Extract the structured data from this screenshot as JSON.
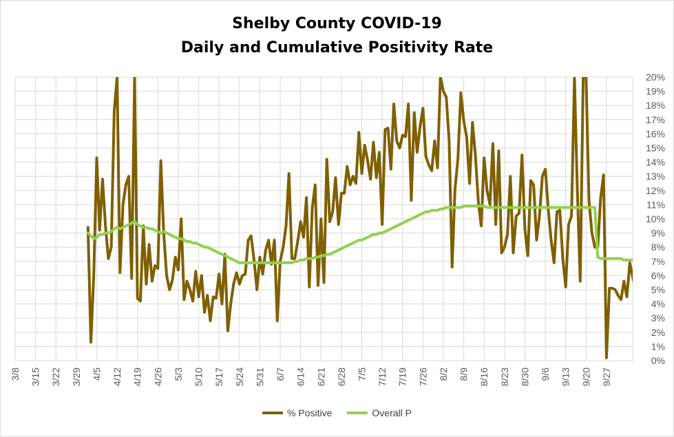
{
  "title_line1": "Shelby County COVID-19",
  "title_line2": "Daily and Cumulative Positivity Rate",
  "colors": {
    "positive": "#7f6000",
    "overall": "#92d050",
    "grid": "#d9d9d9",
    "axis_text": "#595959"
  },
  "chart_data": {
    "type": "line",
    "title": "Shelby County COVID-19 Daily and Cumulative Positivity Rate",
    "x_ticks": [
      "3/8",
      "3/15",
      "3/22",
      "3/29",
      "4/5",
      "4/12",
      "4/19",
      "4/26",
      "5/3",
      "5/10",
      "5/17",
      "5/24",
      "5/31",
      "6/7",
      "6/14",
      "6/21",
      "6/28",
      "7/5",
      "7/12",
      "7/19",
      "7/26",
      "8/2",
      "8/9",
      "8/16",
      "8/23",
      "8/30",
      "9/6",
      "9/13",
      "9/20",
      "9/27"
    ],
    "y_ticks": [
      "0%",
      "1%",
      "2%",
      "3%",
      "4%",
      "5%",
      "6%",
      "7%",
      "8%",
      "9%",
      "10%",
      "11%",
      "12%",
      "13%",
      "14%",
      "15%",
      "16%",
      "17%",
      "18%",
      "19%",
      "20%"
    ],
    "ylim": [
      0,
      20
    ],
    "x_start": "3/8",
    "x_days": 212,
    "series": [
      {
        "name": "% Positive",
        "color": "#7f6000",
        "start": "4/2",
        "values": [
          9.4,
          1.3,
          6.0,
          14.3,
          9.2,
          12.8,
          9.5,
          7.2,
          8.0,
          17.6,
          20.0,
          6.2,
          11.0,
          12.4,
          13.0,
          5.8,
          20.0,
          4.4,
          4.2,
          9.5,
          5.4,
          8.2,
          5.6,
          6.7,
          6.5,
          14.1,
          9.0,
          6.0,
          5.0,
          5.7,
          7.3,
          6.4,
          10.0,
          4.3,
          5.6,
          5.0,
          4.2,
          6.3,
          4.5,
          6.0,
          3.4,
          4.6,
          2.8,
          4.5,
          4.4,
          6.1,
          4.0,
          7.5,
          2.1,
          4.0,
          5.4,
          6.2,
          5.4,
          6.0,
          6.1,
          8.5,
          8.8,
          7.1,
          5.0,
          7.3,
          6.1,
          7.8,
          8.5,
          6.8,
          8.5,
          2.8,
          7.0,
          8.0,
          9.5,
          13.2,
          7.2,
          7.2,
          8.4,
          9.8,
          8.7,
          11.5,
          5.2,
          10.8,
          12.4,
          5.3,
          10.0,
          5.5,
          14.2,
          9.8,
          10.5,
          12.9,
          9.6,
          11.8,
          11.8,
          13.7,
          12.4,
          13.0,
          12.5,
          16.1,
          13.2,
          15.2,
          14.1,
          12.8,
          15.4,
          12.9,
          14.7,
          9.6,
          16.3,
          16.4,
          13.5,
          18.1,
          15.5,
          15.0,
          15.9,
          15.8,
          18.1,
          11.3,
          17.5,
          14.7,
          16.5,
          17.8,
          14.4,
          13.8,
          13.4,
          15.5,
          13.6,
          20.0,
          19.0,
          18.6,
          15.5,
          6.6,
          12.1,
          14.2,
          18.9,
          16.9,
          15.8,
          12.5,
          16.8,
          14.5,
          11.2,
          9.5,
          14.3,
          12.0,
          11.0,
          15.3,
          9.6,
          14.8,
          7.6,
          8.0,
          8.9,
          13.0,
          7.6,
          10.2,
          10.4,
          14.5,
          9.3,
          7.4,
          12.7,
          12.4,
          8.5,
          10.2,
          13.0,
          13.5,
          10.7,
          8.5,
          6.9,
          10.5,
          10.6,
          7.2,
          5.2,
          9.6,
          10.2,
          20.0,
          12.0,
          5.6,
          20.0,
          20.0,
          11.3,
          9.0,
          8.0,
          8.0,
          11.5,
          13.1,
          0.2,
          5.1,
          5.1,
          5.0,
          4.6,
          4.3,
          5.6,
          4.5,
          6.9,
          5.9,
          5.0,
          4.6,
          4.5,
          3.2,
          4.0,
          5.1,
          3.6,
          3.4,
          4.2,
          4.1,
          5.5,
          4.6
        ]
      },
      {
        "name": "Overall P",
        "color": "#92d050",
        "start": "4/2",
        "values": [
          9.0,
          8.8,
          8.6,
          8.7,
          8.9,
          8.9,
          9.0,
          9.0,
          9.1,
          9.3,
          9.4,
          9.3,
          9.4,
          9.5,
          9.6,
          9.7,
          9.8,
          9.6,
          9.5,
          9.4,
          9.4,
          9.3,
          9.3,
          9.2,
          9.1,
          9.0,
          9.1,
          9.0,
          8.9,
          8.8,
          8.7,
          8.6,
          8.6,
          8.5,
          8.4,
          8.4,
          8.3,
          8.3,
          8.2,
          8.1,
          8.0,
          8.0,
          7.9,
          7.8,
          7.7,
          7.6,
          7.5,
          7.4,
          7.3,
          7.2,
          7.1,
          7.0,
          6.9,
          6.9,
          6.9,
          6.9,
          6.9,
          6.9,
          6.9,
          6.9,
          6.9,
          6.9,
          6.9,
          6.9,
          6.9,
          6.9,
          6.9,
          6.9,
          6.9,
          6.9,
          6.9,
          7.0,
          7.0,
          7.1,
          7.1,
          7.2,
          7.2,
          7.2,
          7.3,
          7.3,
          7.4,
          7.4,
          7.5,
          7.5,
          7.6,
          7.7,
          7.8,
          7.9,
          8.0,
          8.1,
          8.2,
          8.3,
          8.4,
          8.5,
          8.5,
          8.6,
          8.7,
          8.8,
          8.9,
          8.9,
          9.0,
          9.0,
          9.1,
          9.2,
          9.3,
          9.4,
          9.5,
          9.6,
          9.7,
          9.8,
          9.9,
          10.0,
          10.1,
          10.2,
          10.3,
          10.4,
          10.5,
          10.5,
          10.6,
          10.6,
          10.6,
          10.7,
          10.7,
          10.8,
          10.8,
          10.8,
          10.8,
          10.8,
          10.8,
          10.9,
          10.9,
          10.9,
          10.9,
          10.9,
          10.9,
          10.9,
          10.9,
          10.8,
          10.8,
          10.8,
          10.8,
          10.8,
          10.8,
          10.8,
          10.8,
          10.8,
          10.8,
          10.8,
          10.8,
          10.8,
          10.8,
          10.8,
          10.8,
          10.8,
          10.8,
          10.8,
          10.8,
          10.8,
          10.8,
          10.8,
          10.8,
          10.8,
          10.8,
          10.8,
          10.8,
          10.8,
          10.8,
          10.8,
          10.8,
          10.8,
          10.8,
          10.8,
          10.8,
          10.8,
          10.8,
          7.3,
          7.2,
          7.2,
          7.2,
          7.2,
          7.2,
          7.2,
          7.2,
          7.2,
          7.1,
          7.1,
          7.1,
          7.1,
          7.1,
          7.1,
          7.0,
          7.0,
          7.0,
          7.0,
          7.0,
          7.0,
          7.0,
          7.0,
          7.0,
          7.0
        ]
      }
    ],
    "legend": [
      "% Positive",
      "Overall P"
    ],
    "grid": true,
    "legend_position": "bottom"
  }
}
